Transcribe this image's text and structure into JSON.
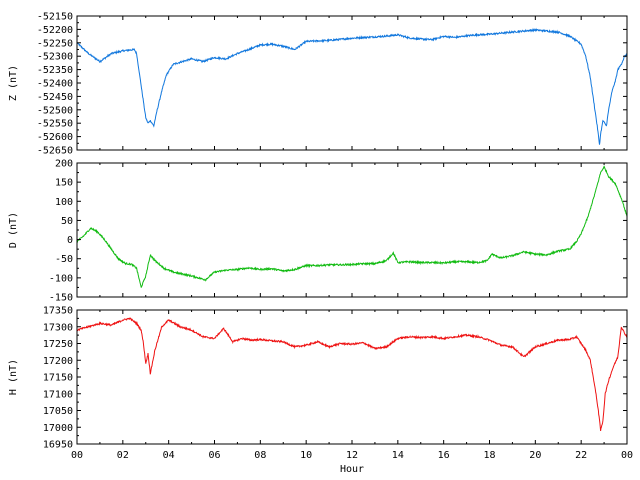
{
  "chart_data": [
    {
      "type": "line",
      "ylabel": "Z (nT)",
      "ylim": [
        -52650,
        -52150
      ],
      "yticks": [
        -52150,
        -52200,
        -52250,
        -52300,
        -52350,
        -52400,
        -52450,
        -52500,
        -52550,
        -52600,
        -52650
      ],
      "xlim": [
        0,
        24
      ],
      "xticks": [
        "00",
        "02",
        "04",
        "06",
        "08",
        "10",
        "12",
        "14",
        "16",
        "18",
        "20",
        "22",
        "00"
      ],
      "color": "#1177dd",
      "x": [
        0,
        0.5,
        1,
        1.5,
        2,
        2.5,
        2.6,
        2.75,
        2.9,
        3.0,
        3.1,
        3.2,
        3.35,
        3.5,
        3.7,
        3.9,
        4.2,
        4.6,
        5,
        5.5,
        6,
        6.5,
        7,
        7.5,
        8,
        8.5,
        9,
        9.5,
        10,
        10.5,
        11,
        11.5,
        12,
        12.5,
        13,
        13.5,
        14,
        14.5,
        15,
        15.5,
        16,
        16.5,
        17,
        17.5,
        18,
        18.5,
        19,
        19.5,
        20,
        20.5,
        21,
        21.5,
        22,
        22.2,
        22.4,
        22.55,
        22.7,
        22.8,
        22.85,
        22.95,
        23.1,
        23.2,
        23.35,
        23.5,
        23.6,
        23.75,
        23.9,
        24
      ],
      "y": [
        -52250,
        -52290,
        -52320,
        -52290,
        -52280,
        -52275,
        -52290,
        -52380,
        -52470,
        -52530,
        -52550,
        -52540,
        -52560,
        -52500,
        -52430,
        -52370,
        -52330,
        -52320,
        -52310,
        -52320,
        -52305,
        -52310,
        -52290,
        -52275,
        -52258,
        -52255,
        -52263,
        -52275,
        -52245,
        -52243,
        -52241,
        -52237,
        -52233,
        -52230,
        -52228,
        -52225,
        -52220,
        -52232,
        -52236,
        -52238,
        -52226,
        -52230,
        -52224,
        -52220,
        -52218,
        -52214,
        -52210,
        -52206,
        -52202,
        -52206,
        -52210,
        -52225,
        -52255,
        -52300,
        -52380,
        -52470,
        -52560,
        -52630,
        -52590,
        -52540,
        -52560,
        -52500,
        -52430,
        -52390,
        -52350,
        -52330,
        -52300,
        -52295
      ]
    },
    {
      "type": "line",
      "ylabel": "D (nT)",
      "ylim": [
        -150,
        200
      ],
      "yticks": [
        200,
        150,
        100,
        50,
        0,
        -50,
        -100,
        -150
      ],
      "xlim": [
        0,
        24
      ],
      "xticks": [
        "00",
        "02",
        "04",
        "06",
        "08",
        "10",
        "12",
        "14",
        "16",
        "18",
        "20",
        "22",
        "00"
      ],
      "color": "#11bb11",
      "x": [
        0,
        0.3,
        0.6,
        0.9,
        1.2,
        1.5,
        1.8,
        2.1,
        2.4,
        2.6,
        2.8,
        3.0,
        3.2,
        3.4,
        3.8,
        4.2,
        4.6,
        5.0,
        5.3,
        5.6,
        6.0,
        6.5,
        7,
        7.5,
        8,
        8.5,
        9,
        9.5,
        10,
        10.5,
        11,
        11.5,
        12,
        12.5,
        13,
        13.5,
        13.8,
        14,
        14.5,
        15,
        15.5,
        16,
        16.5,
        17,
        17.5,
        17.9,
        18.1,
        18.5,
        19,
        19.5,
        20,
        20.5,
        21,
        21.5,
        21.8,
        22,
        22.3,
        22.6,
        22.85,
        23,
        23.2,
        23.5,
        23.8,
        24
      ],
      "y": [
        -5,
        10,
        30,
        20,
        0,
        -25,
        -50,
        -62,
        -65,
        -75,
        -125,
        -95,
        -40,
        -55,
        -75,
        -85,
        -90,
        -95,
        -100,
        -105,
        -85,
        -80,
        -78,
        -74,
        -78,
        -76,
        -82,
        -78,
        -68,
        -68,
        -66,
        -66,
        -65,
        -63,
        -63,
        -55,
        -35,
        -60,
        -58,
        -60,
        -60,
        -61,
        -58,
        -58,
        -60,
        -55,
        -38,
        -48,
        -42,
        -32,
        -38,
        -40,
        -30,
        -25,
        -5,
        15,
        60,
        120,
        175,
        190,
        165,
        145,
        100,
        60
      ]
    },
    {
      "type": "line",
      "ylabel": "H (nT)",
      "xlabel": "Hour",
      "ylim": [
        16950,
        17350
      ],
      "yticks": [
        17350,
        17300,
        17250,
        17200,
        17150,
        17100,
        17050,
        17000,
        16950
      ],
      "xlim": [
        0,
        24
      ],
      "xticks": [
        "00",
        "02",
        "04",
        "06",
        "08",
        "10",
        "12",
        "14",
        "16",
        "18",
        "20",
        "22",
        "00"
      ],
      "color": "#ee1111",
      "x": [
        0,
        0.5,
        1,
        1.5,
        2,
        2.3,
        2.6,
        2.8,
        2.9,
        3.0,
        3.1,
        3.2,
        3.4,
        3.7,
        4.0,
        4.5,
        5.0,
        5.5,
        6.0,
        6.4,
        6.8,
        7.2,
        7.6,
        8,
        8.5,
        9,
        9.5,
        10,
        10.5,
        11,
        11.5,
        12,
        12.5,
        13,
        13.5,
        14,
        14.5,
        15,
        15.5,
        16,
        16.5,
        17,
        17.5,
        18,
        18.5,
        19,
        19.5,
        20,
        20.5,
        21,
        21.5,
        21.8,
        22,
        22.2,
        22.4,
        22.6,
        22.75,
        22.85,
        22.95,
        23.05,
        23.2,
        23.4,
        23.6,
        23.75,
        23.9,
        24
      ],
      "y": [
        17290,
        17300,
        17310,
        17305,
        17320,
        17325,
        17310,
        17290,
        17250,
        17190,
        17220,
        17160,
        17230,
        17300,
        17320,
        17300,
        17290,
        17270,
        17265,
        17295,
        17255,
        17265,
        17260,
        17262,
        17258,
        17255,
        17240,
        17245,
        17255,
        17240,
        17250,
        17248,
        17252,
        17235,
        17240,
        17265,
        17270,
        17268,
        17270,
        17265,
        17270,
        17275,
        17270,
        17260,
        17245,
        17240,
        17210,
        17240,
        17250,
        17260,
        17262,
        17270,
        17250,
        17230,
        17200,
        17120,
        17050,
        16990,
        17020,
        17100,
        17140,
        17180,
        17210,
        17300,
        17280,
        17270
      ]
    }
  ]
}
